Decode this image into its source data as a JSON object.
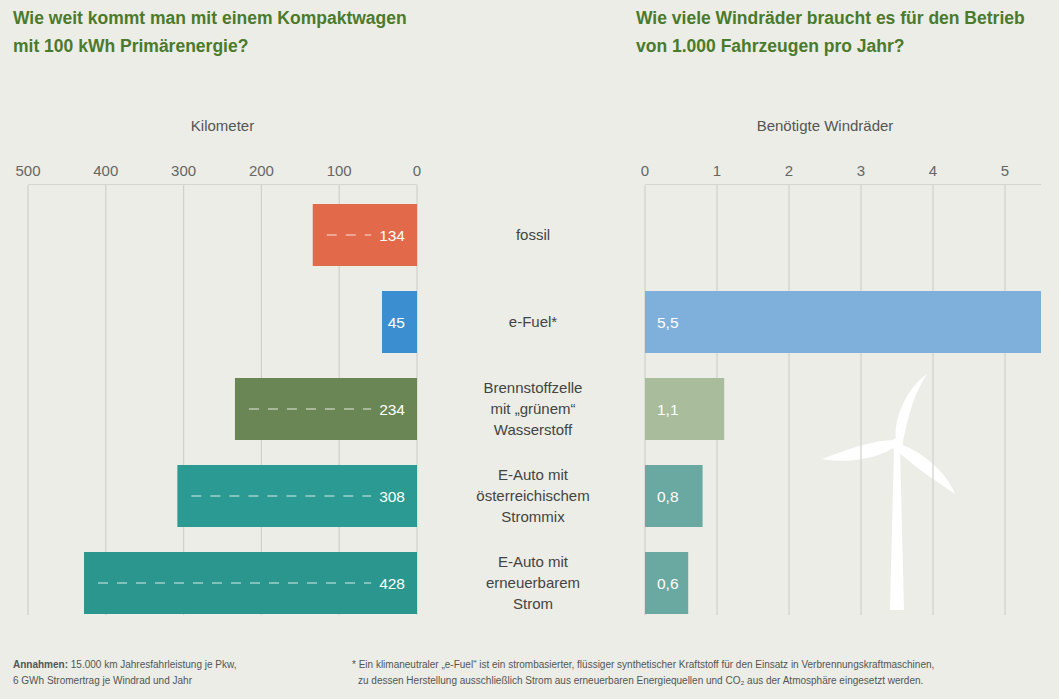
{
  "chart_data": [
    {
      "type": "bar",
      "title": "Wie weit kommt man mit einem Kompaktwagen\nmit 100 kWh Primärenergie?",
      "x_label": "Kilometer",
      "categories": [
        "fossil",
        "e-Fuel*",
        "Brennstoffzelle\nmit „grünem“\nWasserstoff",
        "E-Auto mit\nösterreichischem\nStrommix",
        "E-Auto mit\nerneuerbarem\nStrom"
      ],
      "values": [
        134,
        45,
        234,
        308,
        428
      ],
      "colors": [
        "#e2694a",
        "#3b8fd1",
        "#6a8655",
        "#2a9a92",
        "#2a968e"
      ],
      "xlim": [
        500,
        0
      ],
      "xticks": [
        500,
        400,
        300,
        200,
        100,
        0
      ],
      "orientation": "horizontal",
      "data_labels": true,
      "grid": true
    },
    {
      "type": "bar",
      "title": "Wie viele Windräder braucht es für den Betrieb\nvon 1.000 Fahrzeugen pro Jahr?",
      "x_label": "Benötigte Windräder",
      "values": [
        null,
        5.5,
        1.1,
        0.8,
        0.6
      ],
      "value_labels": [
        null,
        "5,5",
        "1,1",
        "0,8",
        "0,6"
      ],
      "colors": [
        null,
        "#7fb0dc",
        "#a9bd9c",
        "#6aa8a2",
        "#6aa8a2"
      ],
      "xlim": [
        0,
        5.5
      ],
      "xticks": [
        0,
        1,
        2,
        3,
        4,
        5
      ],
      "orientation": "horizontal",
      "data_labels": true,
      "grid": true
    }
  ],
  "footer": {
    "assumptions_label": "Annahmen:",
    "assumptions": [
      "15.000 km Jahresfahrleistung je Pkw,",
      "6 GWh Stromertrag je Windrad und Jahr"
    ],
    "footnote": [
      "* Ein klimaneutraler „e-Fuel“ ist ein strombasierter, flüssiger synthetischer Kraftstoff für den Einsatz in Verbrennungskraftmaschinen,",
      "zu dessen Herstellung ausschließlich Strom aus erneuerbaren Energiequellen und CO₂ aus der Atmosphäre eingesetzt werden."
    ]
  }
}
